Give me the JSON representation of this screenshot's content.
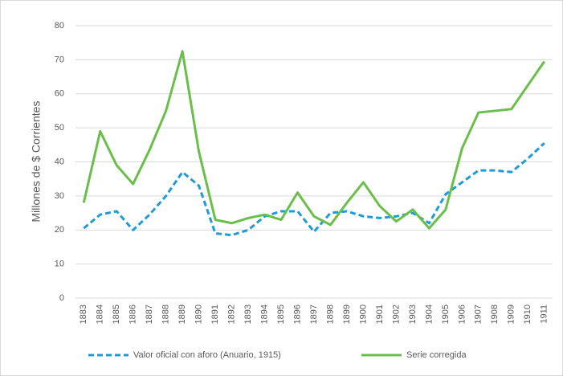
{
  "chart_data": {
    "type": "line",
    "y_label": "Millones de $ Corrientes",
    "categories": [
      "1883",
      "1884",
      "1885",
      "1886",
      "1887",
      "1888",
      "1889",
      "1890",
      "1891",
      "1892",
      "1893",
      "1894",
      "1895",
      "1896",
      "1897",
      "1898",
      "1899",
      "1900",
      "1901",
      "1902",
      "1903",
      "1904",
      "1905",
      "1906",
      "1907",
      "1908",
      "1909",
      "1910",
      "1911"
    ],
    "series": [
      {
        "name": "Valor oficial con aforo (Anuario, 1915)",
        "color": "#1f9bd7",
        "dashed": true,
        "values": [
          20.5,
          24.5,
          25.5,
          20,
          24.5,
          30,
          37,
          33,
          19,
          18.5,
          20,
          24,
          25.5,
          25.5,
          19.5,
          25,
          25.5,
          24,
          23.5,
          24,
          25,
          22,
          30.5,
          34,
          37.5,
          37.5,
          37,
          41,
          45.5
        ]
      },
      {
        "name": "Serie corregida",
        "color": "#6abf4b",
        "dashed": false,
        "values": [
          28,
          49,
          39,
          33.5,
          43.5,
          55,
          72.5,
          43,
          23,
          22,
          23.5,
          24.5,
          23,
          31,
          24,
          21.5,
          28,
          34,
          27,
          22.5,
          26,
          20.5,
          26,
          44,
          54.5,
          55,
          55.5,
          62.5,
          69.5
        ]
      }
    ],
    "ylim": [
      0,
      80
    ],
    "yticks": [
      0,
      10,
      20,
      30,
      40,
      50,
      60,
      70,
      80
    ],
    "grid": true,
    "legend": "bottom"
  }
}
